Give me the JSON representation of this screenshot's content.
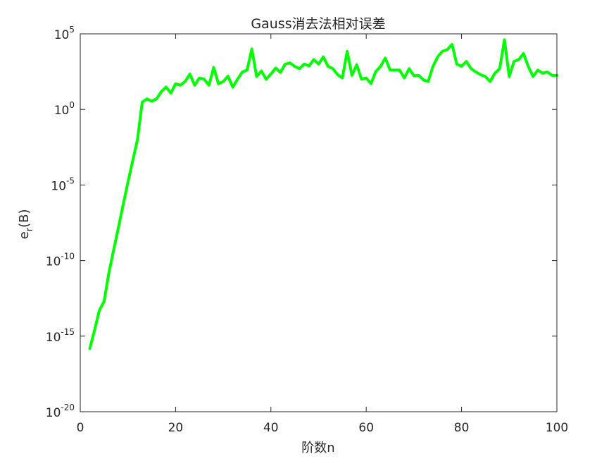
{
  "chart_data": {
    "type": "line",
    "title": "Gauss消去法相对误差",
    "xlabel": "阶数n",
    "ylabel": {
      "base": "e",
      "subscript": "r",
      "suffix": "(B)"
    },
    "xscale": "linear",
    "yscale": "log",
    "xlim": [
      0,
      100
    ],
    "ylim": [
      1e-20,
      100000.0
    ],
    "grid": false,
    "box": true,
    "xticks": [
      0,
      20,
      40,
      60,
      80,
      100
    ],
    "xtick_labels": [
      "0",
      "20",
      "40",
      "60",
      "80",
      "100"
    ],
    "yticks": [
      1e-20,
      1e-15,
      1e-10,
      1e-05,
      1,
      100000.0
    ],
    "ytick_labels": [
      {
        "base": "10",
        "exp": "-20"
      },
      {
        "base": "10",
        "exp": "-15"
      },
      {
        "base": "10",
        "exp": "-10"
      },
      {
        "base": "10",
        "exp": "-5"
      },
      {
        "base": "10",
        "exp": "0"
      },
      {
        "base": "10",
        "exp": "5"
      }
    ],
    "series": [
      {
        "color": "#00ff00",
        "x": [
          2,
          3,
          4,
          5,
          6,
          7,
          8,
          9,
          10,
          11,
          12,
          13,
          14,
          15,
          16,
          17,
          18,
          19,
          20,
          21,
          22,
          23,
          24,
          25,
          26,
          27,
          28,
          29,
          30,
          31,
          32,
          33,
          34,
          35,
          36,
          37,
          38,
          39,
          40,
          41,
          42,
          43,
          44,
          45,
          46,
          47,
          48,
          49,
          50,
          51,
          52,
          53,
          54,
          55,
          56,
          57,
          58,
          59,
          60,
          61,
          62,
          63,
          64,
          65,
          66,
          67,
          68,
          69,
          70,
          71,
          72,
          73,
          74,
          75,
          76,
          77,
          78,
          79,
          80,
          81,
          82,
          83,
          84,
          85,
          86,
          87,
          88,
          89,
          90,
          91,
          92,
          93,
          94,
          95,
          96,
          97,
          98,
          99,
          100
        ],
        "y": [
          1.5e-16,
          2.5e-15,
          5e-14,
          2e-13,
          1.5e-11,
          5e-10,
          1.5e-08,
          5e-07,
          1.5e-05,
          0.0004,
          0.01,
          3,
          5,
          3.5,
          5,
          15,
          30,
          12,
          50,
          40,
          70,
          220,
          40,
          120,
          100,
          40,
          600,
          50,
          70,
          160,
          30,
          100,
          300,
          400,
          10000,
          150,
          350,
          100,
          220,
          550,
          280,
          1000,
          1200,
          700,
          500,
          1000,
          750,
          2000,
          1000,
          3000,
          700,
          500,
          200,
          120,
          7000,
          180,
          900,
          100,
          120,
          50,
          320,
          700,
          2500,
          400,
          400,
          400,
          120,
          500,
          170,
          180,
          90,
          70,
          700,
          3000,
          7000,
          9000,
          20000,
          1000,
          700,
          1500,
          500,
          300,
          200,
          150,
          70,
          250,
          500,
          40000,
          150,
          1500,
          2000,
          5000,
          700,
          150,
          400,
          250,
          300,
          180,
          180
        ]
      }
    ]
  }
}
